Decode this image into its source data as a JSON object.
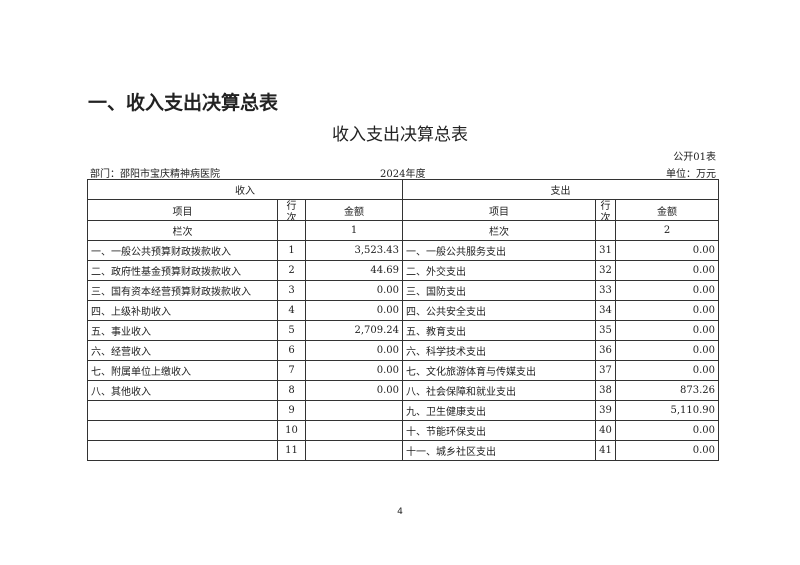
{
  "heading": "一、收入支出决算总表",
  "title": "收入支出决算总表",
  "form_no": "公开01表",
  "dept": "部门：邵阳市宝庆精神病医院",
  "year": "2024年度",
  "unit": "单位：万元",
  "headers": {
    "income": "收入",
    "expense": "支出",
    "item": "项目",
    "row_no": "行次",
    "amount": "金额",
    "col_label": "栏次",
    "col1": "1",
    "col2": "2"
  },
  "rows": [
    [
      "一、一般公共预算财政拨款收入",
      "1",
      "3,523.43",
      "一、一般公共服务支出",
      "31",
      "0.00"
    ],
    [
      "二、政府性基金预算财政拨款收入",
      "2",
      "44.69",
      "二、外交支出",
      "32",
      "0.00"
    ],
    [
      "三、国有资本经营预算财政拨款收入",
      "3",
      "0.00",
      "三、国防支出",
      "33",
      "0.00"
    ],
    [
      "四、上级补助收入",
      "4",
      "0.00",
      "四、公共安全支出",
      "34",
      "0.00"
    ],
    [
      "五、事业收入",
      "5",
      "2,709.24",
      "五、教育支出",
      "35",
      "0.00"
    ],
    [
      "六、经营收入",
      "6",
      "0.00",
      "六、科学技术支出",
      "36",
      "0.00"
    ],
    [
      "七、附属单位上缴收入",
      "7",
      "0.00",
      "七、文化旅游体育与传媒支出",
      "37",
      "0.00"
    ],
    [
      "八、其他收入",
      "8",
      "0.00",
      "八、社会保障和就业支出",
      "38",
      "873.26"
    ],
    [
      "",
      "9",
      "",
      "九、卫生健康支出",
      "39",
      "5,110.90"
    ],
    [
      "",
      "10",
      "",
      "十、节能环保支出",
      "40",
      "0.00"
    ],
    [
      "",
      "11",
      "",
      "十一、城乡社区支出",
      "41",
      "0.00"
    ]
  ],
  "page_number": "4"
}
